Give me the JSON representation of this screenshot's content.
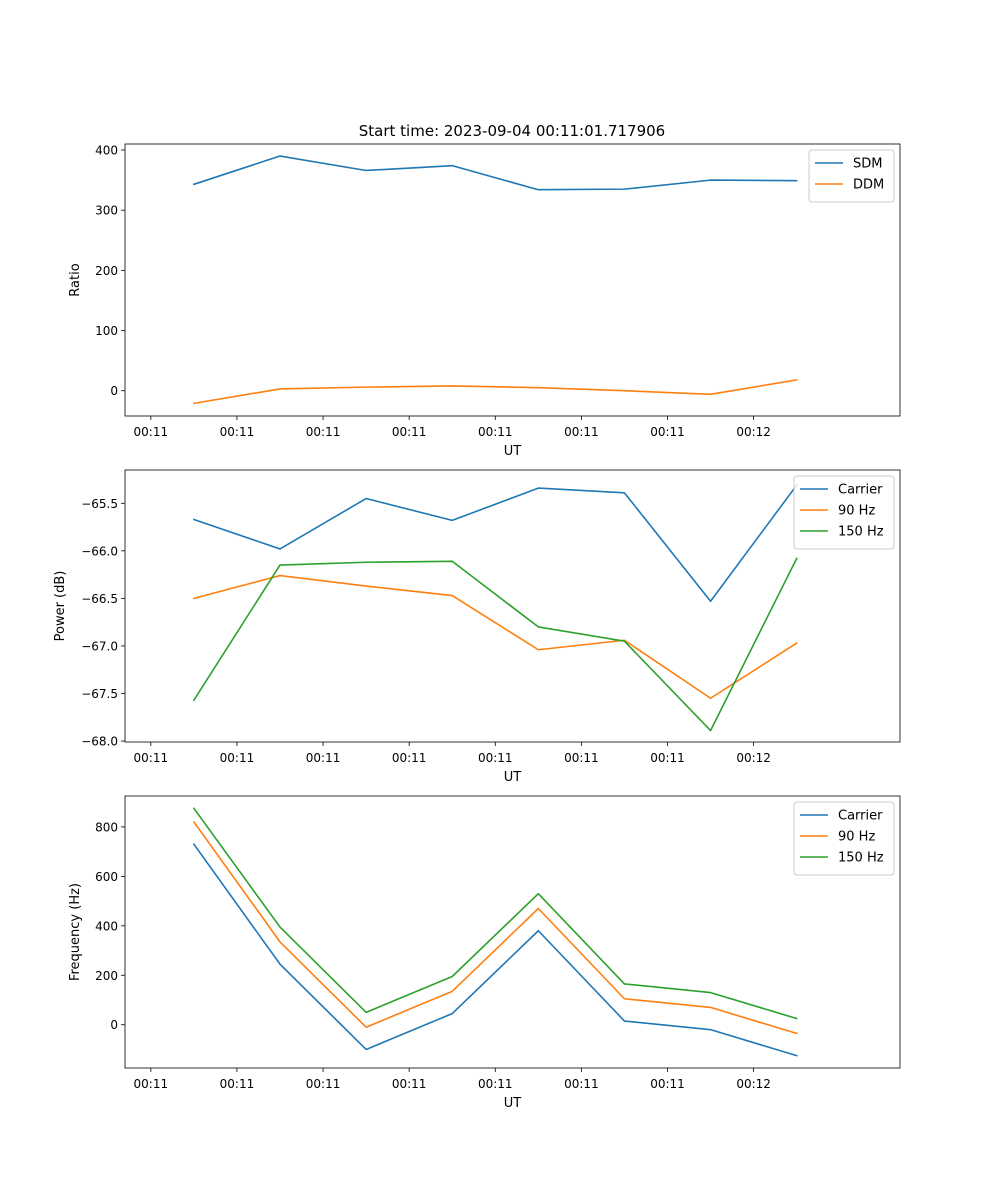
{
  "figure_title": "Start time: 2023-09-04 00:11:01.717906",
  "chart_data": [
    {
      "type": "line",
      "xlabel": "UT",
      "ylabel": "Ratio",
      "x_tick_labels": [
        "00:11",
        "00:11",
        "00:11",
        "00:11",
        "00:11",
        "00:11",
        "00:11",
        "00:12"
      ],
      "xlim": [
        -0.3,
        8.7
      ],
      "x": [
        0.5,
        1.5,
        2.5,
        3.5,
        4.5,
        5.5,
        6.5,
        7.5
      ],
      "ylim": [
        -42,
        410
      ],
      "yticks": [
        0,
        100,
        200,
        300,
        400
      ],
      "ytick_labels": [
        "0",
        "100",
        "200",
        "300",
        "400"
      ],
      "legend_position": "top-right",
      "series": [
        {
          "name": "SDM",
          "color": "#1f77b4",
          "values": [
            343,
            390,
            366,
            374,
            334,
            335,
            350,
            349
          ]
        },
        {
          "name": "DDM",
          "color": "#ff7f0e",
          "values": [
            -21,
            3,
            6,
            8,
            5,
            0,
            -6,
            18
          ]
        }
      ]
    },
    {
      "type": "line",
      "xlabel": "UT",
      "ylabel": "Power (dB)",
      "x_tick_labels": [
        "00:11",
        "00:11",
        "00:11",
        "00:11",
        "00:11",
        "00:11",
        "00:11",
        "00:12"
      ],
      "xlim": [
        -0.3,
        8.7
      ],
      "x": [
        0.5,
        1.5,
        2.5,
        3.5,
        4.5,
        5.5,
        6.5,
        7.5
      ],
      "ylim": [
        -68.01,
        -65.15
      ],
      "yticks": [
        -68.0,
        -67.5,
        -67.0,
        -66.5,
        -66.0,
        -65.5
      ],
      "ytick_labels": [
        "−68.0",
        "−67.5",
        "−67.0",
        "−66.5",
        "−66.0",
        "−65.5"
      ],
      "legend_position": "top-right",
      "series": [
        {
          "name": "Carrier",
          "color": "#1f77b4",
          "values": [
            -65.67,
            -65.98,
            -65.45,
            -65.68,
            -65.34,
            -65.39,
            -66.53,
            -65.31
          ]
        },
        {
          "name": "90 Hz",
          "color": "#ff7f0e",
          "values": [
            -66.5,
            -66.26,
            -66.37,
            -66.47,
            -67.04,
            -66.94,
            -67.55,
            -66.97
          ]
        },
        {
          "name": "150 Hz",
          "color": "#2ca02c",
          "values": [
            -67.57,
            -66.15,
            -66.12,
            -66.11,
            -66.8,
            -66.95,
            -67.89,
            -66.08
          ]
        }
      ]
    },
    {
      "type": "line",
      "xlabel": "UT",
      "ylabel": "Frequency (Hz)",
      "x_tick_labels": [
        "00:11",
        "00:11",
        "00:11",
        "00:11",
        "00:11",
        "00:11",
        "00:11",
        "00:12"
      ],
      "xlim": [
        -0.3,
        8.7
      ],
      "x": [
        0.5,
        1.5,
        2.5,
        3.5,
        4.5,
        5.5,
        6.5,
        7.5
      ],
      "ylim": [
        -175,
        925
      ],
      "yticks": [
        0,
        200,
        400,
        600,
        800
      ],
      "ytick_labels": [
        "0",
        "200",
        "400",
        "600",
        "800"
      ],
      "legend_position": "top-right",
      "series": [
        {
          "name": "Carrier",
          "color": "#1f77b4",
          "values": [
            730,
            245,
            -100,
            45,
            380,
            15,
            -20,
            -125
          ]
        },
        {
          "name": "90 Hz",
          "color": "#ff7f0e",
          "values": [
            820,
            335,
            -10,
            135,
            470,
            105,
            70,
            -35
          ]
        },
        {
          "name": "150 Hz",
          "color": "#2ca02c",
          "values": [
            875,
            395,
            50,
            195,
            530,
            165,
            130,
            25
          ]
        }
      ]
    }
  ]
}
